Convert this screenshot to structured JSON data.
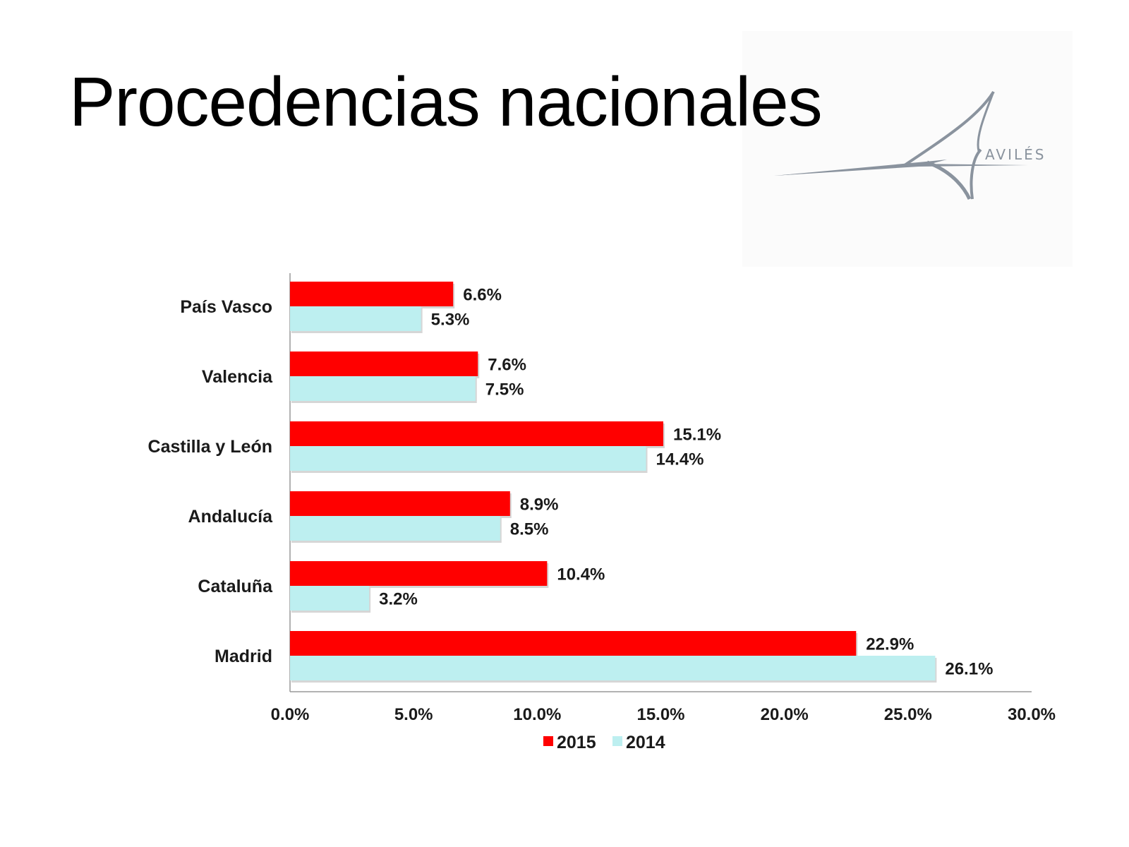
{
  "slide": {
    "title": "Procedencias nacionales"
  },
  "logo": {
    "text": "AVILÉS",
    "color": "#8a939e"
  },
  "chart_data": {
    "type": "bar",
    "orientation": "horizontal",
    "categories": [
      "País Vasco",
      "Valencia",
      "Castilla y León",
      "Andalucía",
      "Cataluña",
      "Madrid"
    ],
    "series": [
      {
        "name": "2015",
        "color": "#ff0000",
        "values": [
          6.6,
          7.6,
          15.1,
          8.9,
          10.4,
          22.9
        ],
        "labels": [
          "6.6%",
          "7.6%",
          "15.1%",
          "8.9%",
          "10.4%",
          "22.9%"
        ]
      },
      {
        "name": "2014",
        "color": "#bdeff0",
        "values": [
          5.3,
          7.5,
          14.4,
          8.5,
          3.2,
          26.1
        ],
        "labels": [
          "5.3%",
          "7.5%",
          "14.4%",
          "8.5%",
          "3.2%",
          "26.1%"
        ]
      }
    ],
    "xlim": [
      0,
      30
    ],
    "xticks": [
      "0.0%",
      "5.0%",
      "10.0%",
      "15.0%",
      "20.0%",
      "25.0%",
      "30.0%"
    ],
    "grid": false,
    "legend": "bottom"
  }
}
